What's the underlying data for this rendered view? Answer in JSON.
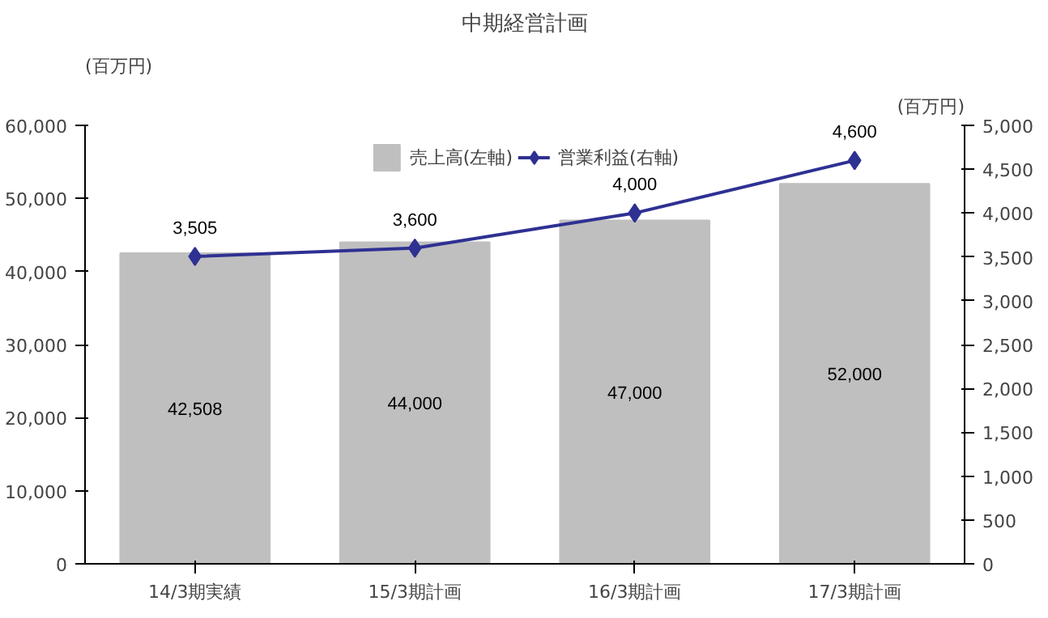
{
  "chart_data": {
    "type": "bar",
    "title": "中期経営計画",
    "ylabel": "(百万円)",
    "y2label": "(百万円)",
    "categories": [
      "14/3期実績",
      "15/3期計画",
      "16/3期計画",
      "17/3期計画"
    ],
    "series": [
      {
        "name": "売上高(左軸)",
        "color": "#bfbfbf",
        "values": [
          42508,
          44000,
          47000,
          52000
        ],
        "value_labels": [
          "42,508",
          "44,000",
          "47,000",
          "52,000"
        ]
      },
      {
        "name": "営業利益(右軸)",
        "type": "line",
        "axis": "y2",
        "color": "#2e3192",
        "marker": "diamond",
        "values": [
          3505,
          3600,
          4000,
          4600
        ],
        "value_labels": [
          "3,505",
          "3,600",
          "4,000",
          "4,600"
        ]
      }
    ],
    "ylim": [
      0,
      60000
    ],
    "yticks": [
      0,
      {
        "value": 10000,
        "label": "10,000"
      },
      {
        "value": 20000,
        "label": "20,000"
      },
      {
        "value": 30000,
        "label": "30,000"
      },
      {
        "value": 40000,
        "label": "40,000"
      },
      {
        "value": 50000,
        "label": "50,000"
      },
      {
        "value": 60000,
        "label": "60,000"
      }
    ],
    "y2lim": [
      0,
      5000
    ],
    "y2ticks": [
      0,
      500,
      {
        "value": 1000,
        "label": "1,000"
      },
      {
        "value": 1500,
        "label": "1,500"
      },
      {
        "value": 2000,
        "label": "2,000"
      },
      {
        "value": 2500,
        "label": "2,500"
      },
      {
        "value": 3000,
        "label": "3,000"
      },
      {
        "value": 3500,
        "label": "3,500"
      },
      {
        "value": 4000,
        "label": "4,000"
      },
      {
        "value": 4500,
        "label": "4,500"
      },
      {
        "value": 5000,
        "label": "5,000"
      }
    ],
    "legend": "top",
    "grid": false
  }
}
